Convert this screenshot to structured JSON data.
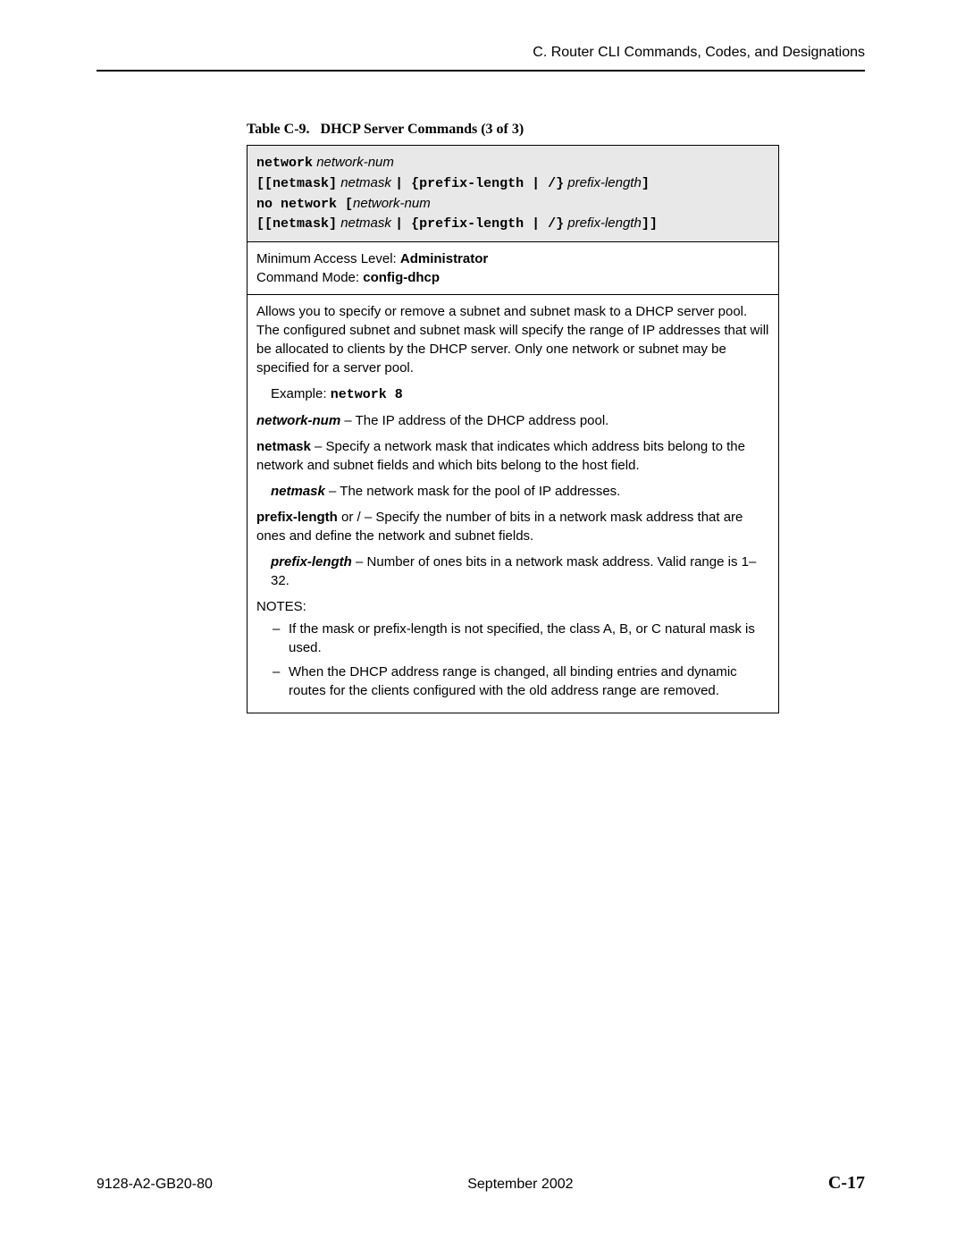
{
  "header": {
    "breadcrumb": "C. Router CLI Commands, Codes, and Designations"
  },
  "caption": {
    "label": "Table C-9.",
    "title": "DHCP Server Commands (3 of 3)"
  },
  "syntax": {
    "l1_a": "network",
    "l1_b": "network-num",
    "l2_a": "[[netmask]",
    "l2_b": "netmask",
    "l2_c": "| {prefix-length | /}",
    "l2_d": "prefix-length",
    "l2_e": "]",
    "l3_a": "no network [",
    "l3_b": "network-num",
    "l4_a": "[[netmask]",
    "l4_b": "netmask",
    "l4_c": "| {prefix-length | /}",
    "l4_d": "prefix-length",
    "l4_e": "]]"
  },
  "access": {
    "label1": "Minimum Access Level:",
    "val1": "Administrator",
    "label2": "Command Mode:",
    "val2": "config-dhcp"
  },
  "desc": {
    "p1": "Allows you to specify or remove a subnet and subnet mask to a DHCP server pool. The configured subnet and subnet mask will specify the range of IP addresses that will be allocated to clients by the DHCP server. Only one network or subnet may be specified for a server pool.",
    "ex_label": "Example:",
    "ex_code": "network 8",
    "nn_b": "network-num",
    "nn_t": " – The IP address of the DHCP address pool.",
    "nm_b": "netmask",
    "nm_t": " – Specify a network mask that indicates which address bits belong to the network and subnet fields and which bits belong to the host field.",
    "nm2_b": "netmask",
    "nm2_t": " – The network mask for the pool of IP addresses.",
    "pl_b": "prefix-length",
    "pl_t": " or / – Specify the number of bits in a network mask address that are ones and define the network and subnet fields.",
    "pl2_b": "prefix-length",
    "pl2_t": " – Number of ones bits in a network mask address. Valid range is 1–32.",
    "notes_label": "NOTES:",
    "note1": "If the mask or prefix-length is not specified, the class A, B, or C natural mask is used.",
    "note2": "When the DHCP address range is changed, all binding entries and dynamic routes for the clients configured with the old address range are removed."
  },
  "footer": {
    "doc": "9128-A2-GB20-80",
    "date": "September 2002",
    "page": "C-17"
  }
}
